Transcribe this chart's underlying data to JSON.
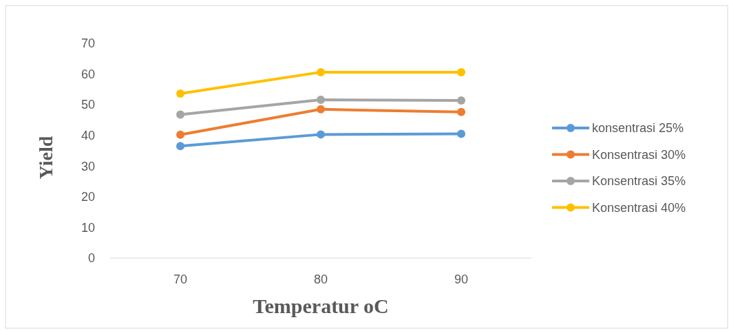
{
  "chart_data": {
    "type": "line",
    "xlabel": "Temperatur oC",
    "ylabel": "Yield",
    "categories": [
      "70",
      "80",
      "90"
    ],
    "series": [
      {
        "name": "konsentrasi 25%",
        "color": "#5b9bd5",
        "values": [
          36.5,
          40.3,
          40.5
        ]
      },
      {
        "name": "Konsentrasi 30%",
        "color": "#ed7d31",
        "values": [
          40.2,
          48.5,
          47.6
        ]
      },
      {
        "name": "Konsentrasi 35%",
        "color": "#a5a5a5",
        "values": [
          46.8,
          51.6,
          51.4
        ]
      },
      {
        "name": "Konsentrasi 40%",
        "color": "#ffc000",
        "values": [
          53.6,
          60.6,
          60.6
        ]
      }
    ],
    "ylim": [
      0,
      70
    ],
    "yticks": [
      0,
      10,
      20,
      30,
      40,
      50,
      60,
      70
    ],
    "grid": false,
    "legend": "right",
    "marker": "circle",
    "line_style": "solid"
  }
}
